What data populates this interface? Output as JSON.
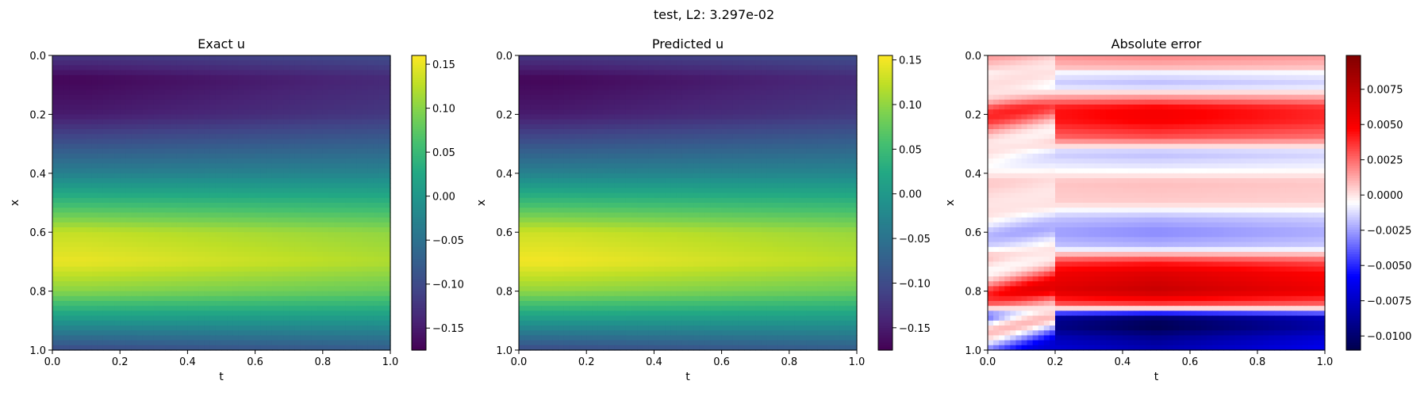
{
  "figure": {
    "suptitle": "test, L2: 3.297e-02"
  },
  "chart_data": [
    {
      "type": "heatmap",
      "title": "Exact u",
      "xlabel": "t",
      "ylabel": "x",
      "xlim": [
        0.0,
        1.0
      ],
      "ylim": [
        1.0,
        0.0
      ],
      "xticks": [
        "0.0",
        "0.2",
        "0.4",
        "0.6",
        "0.8",
        "1.0"
      ],
      "yticks": [
        "0.0",
        "0.2",
        "0.4",
        "0.6",
        "0.8",
        "1.0"
      ],
      "colormap": "viridis",
      "colorbar": {
        "range": [
          -0.175,
          0.16
        ],
        "ticks": [
          0.15,
          0.1,
          0.05,
          0.0,
          -0.05,
          -0.1,
          -0.15
        ],
        "ticklabels": [
          "0.15",
          "0.10",
          "0.05",
          "0.00",
          "−0.05",
          "−0.10",
          "−0.15"
        ]
      },
      "value_profile_x": [
        0.0,
        0.08,
        0.2,
        0.3,
        0.4,
        0.5,
        0.6,
        0.7,
        0.8,
        0.9,
        1.0
      ],
      "value_profile_u": [
        -0.12,
        -0.17,
        -0.15,
        -0.09,
        -0.03,
        0.05,
        0.13,
        0.15,
        0.1,
        0.0,
        -0.1
      ],
      "time_variation": "peak values strongest near t=0.0-0.2, slowly decaying toward t=1.0"
    },
    {
      "type": "heatmap",
      "title": "Predicted u",
      "xlabel": "t",
      "ylabel": "x",
      "xlim": [
        0.0,
        1.0
      ],
      "ylim": [
        1.0,
        0.0
      ],
      "xticks": [
        "0.0",
        "0.2",
        "0.4",
        "0.6",
        "0.8",
        "1.0"
      ],
      "yticks": [
        "0.0",
        "0.2",
        "0.4",
        "0.6",
        "0.8",
        "1.0"
      ],
      "colormap": "viridis",
      "colorbar": {
        "range": [
          -0.175,
          0.155
        ],
        "ticks": [
          0.15,
          0.1,
          0.05,
          0.0,
          -0.05,
          -0.1,
          -0.15
        ],
        "ticklabels": [
          "0.15",
          "0.10",
          "0.05",
          "0.00",
          "−0.05",
          "−0.10",
          "−0.15"
        ]
      },
      "value_profile_x": [
        0.0,
        0.08,
        0.2,
        0.3,
        0.4,
        0.5,
        0.6,
        0.7,
        0.8,
        0.9,
        1.0
      ],
      "value_profile_u": [
        -0.12,
        -0.17,
        -0.15,
        -0.09,
        -0.03,
        0.05,
        0.13,
        0.15,
        0.1,
        0.0,
        -0.1
      ],
      "time_variation": "peak values strongest near t=0.0-0.2, slowly decaying toward t=1.0"
    },
    {
      "type": "heatmap",
      "title": "Absolute error",
      "xlabel": "t",
      "ylabel": "x",
      "xlim": [
        0.0,
        1.0
      ],
      "ylim": [
        1.0,
        0.0
      ],
      "xticks": [
        "0.0",
        "0.2",
        "0.4",
        "0.6",
        "0.8",
        "1.0"
      ],
      "yticks": [
        "0.0",
        "0.2",
        "0.4",
        "0.6",
        "0.8",
        "1.0"
      ],
      "colormap": "seismic",
      "colorbar": {
        "range": [
          -0.011,
          0.0099
        ],
        "ticks": [
          0.0075,
          0.005,
          0.0025,
          0.0,
          -0.0025,
          -0.005,
          -0.0075,
          -0.01
        ],
        "ticklabels": [
          "0.0075",
          "0.0050",
          "0.0025",
          "0.0000",
          "−0.0025",
          "−0.0050",
          "−0.0075",
          "−0.0100"
        ]
      },
      "bands_x": [
        0.0,
        0.04,
        0.06,
        0.1,
        0.18,
        0.22,
        0.28,
        0.33,
        0.38,
        0.43,
        0.5,
        0.55,
        0.6,
        0.65,
        0.7,
        0.74,
        0.8,
        0.85,
        0.89,
        0.92,
        0.96,
        1.0
      ],
      "bands_err": [
        0.002,
        0.001,
        -0.001,
        -0.002,
        0.005,
        0.005,
        0.003,
        -0.002,
        -0.001,
        0.0008,
        0.0005,
        -0.002,
        -0.003,
        -0.002,
        0.004,
        0.006,
        0.007,
        0.003,
        -0.01,
        -0.011,
        -0.009,
        -0.008
      ]
    }
  ]
}
